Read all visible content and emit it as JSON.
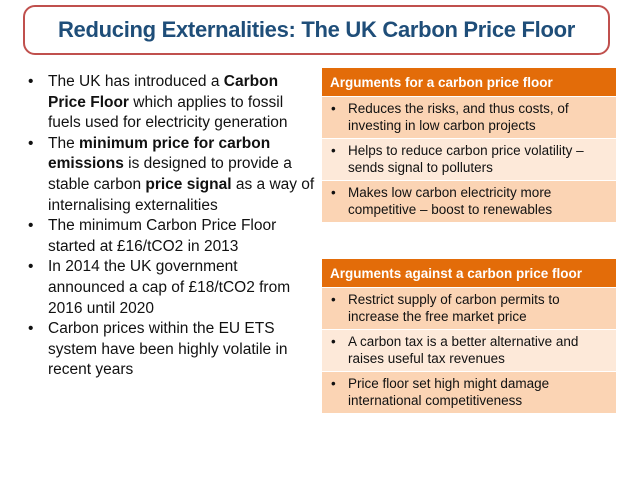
{
  "title": "Reducing Externalities: The UK Carbon Price Floor",
  "bullets": [
    [
      {
        "t": "The UK has introduced a "
      },
      {
        "t": "Carbon Price Floor",
        "b": true
      },
      {
        "t": " which applies to fossil fuels used for electricity generation"
      }
    ],
    [
      {
        "t": "The "
      },
      {
        "t": "minimum price for carbon emissions",
        "b": true
      },
      {
        "t": " is designed to provide a stable carbon "
      },
      {
        "t": "price signal",
        "b": true
      },
      {
        "t": " as a way of internalising externalities"
      }
    ],
    [
      {
        "t": "The minimum Carbon Price Floor started at £16/tCO2 in 2013"
      }
    ],
    [
      {
        "t": "In 2014 the UK government announced a cap of £18/tCO2 from 2016 until 2020"
      }
    ],
    [
      {
        "t": "Carbon prices within the EU ETS system have been highly volatile in recent years"
      }
    ]
  ],
  "for_table": {
    "header": "Arguments for a carbon price floor",
    "rows": [
      "Reduces the risks, and thus costs, of investing in low carbon projects",
      "Helps to reduce carbon price volatility – sends signal to polluters",
      "Makes low carbon electricity more competitive – boost to renewables"
    ]
  },
  "against_table": {
    "header": "Arguments against a carbon price floor",
    "rows": [
      "Restrict supply of carbon permits to increase the free market price",
      "A carbon tax is a better alternative and raises useful tax revenues",
      "Price floor set high might damage international competitiveness"
    ]
  },
  "colors": {
    "title_border": "#c0504d",
    "title_text": "#1f4e79",
    "table_header": "#e36c09",
    "row_dark": "#fbd4b4",
    "row_light": "#fde9d9"
  }
}
